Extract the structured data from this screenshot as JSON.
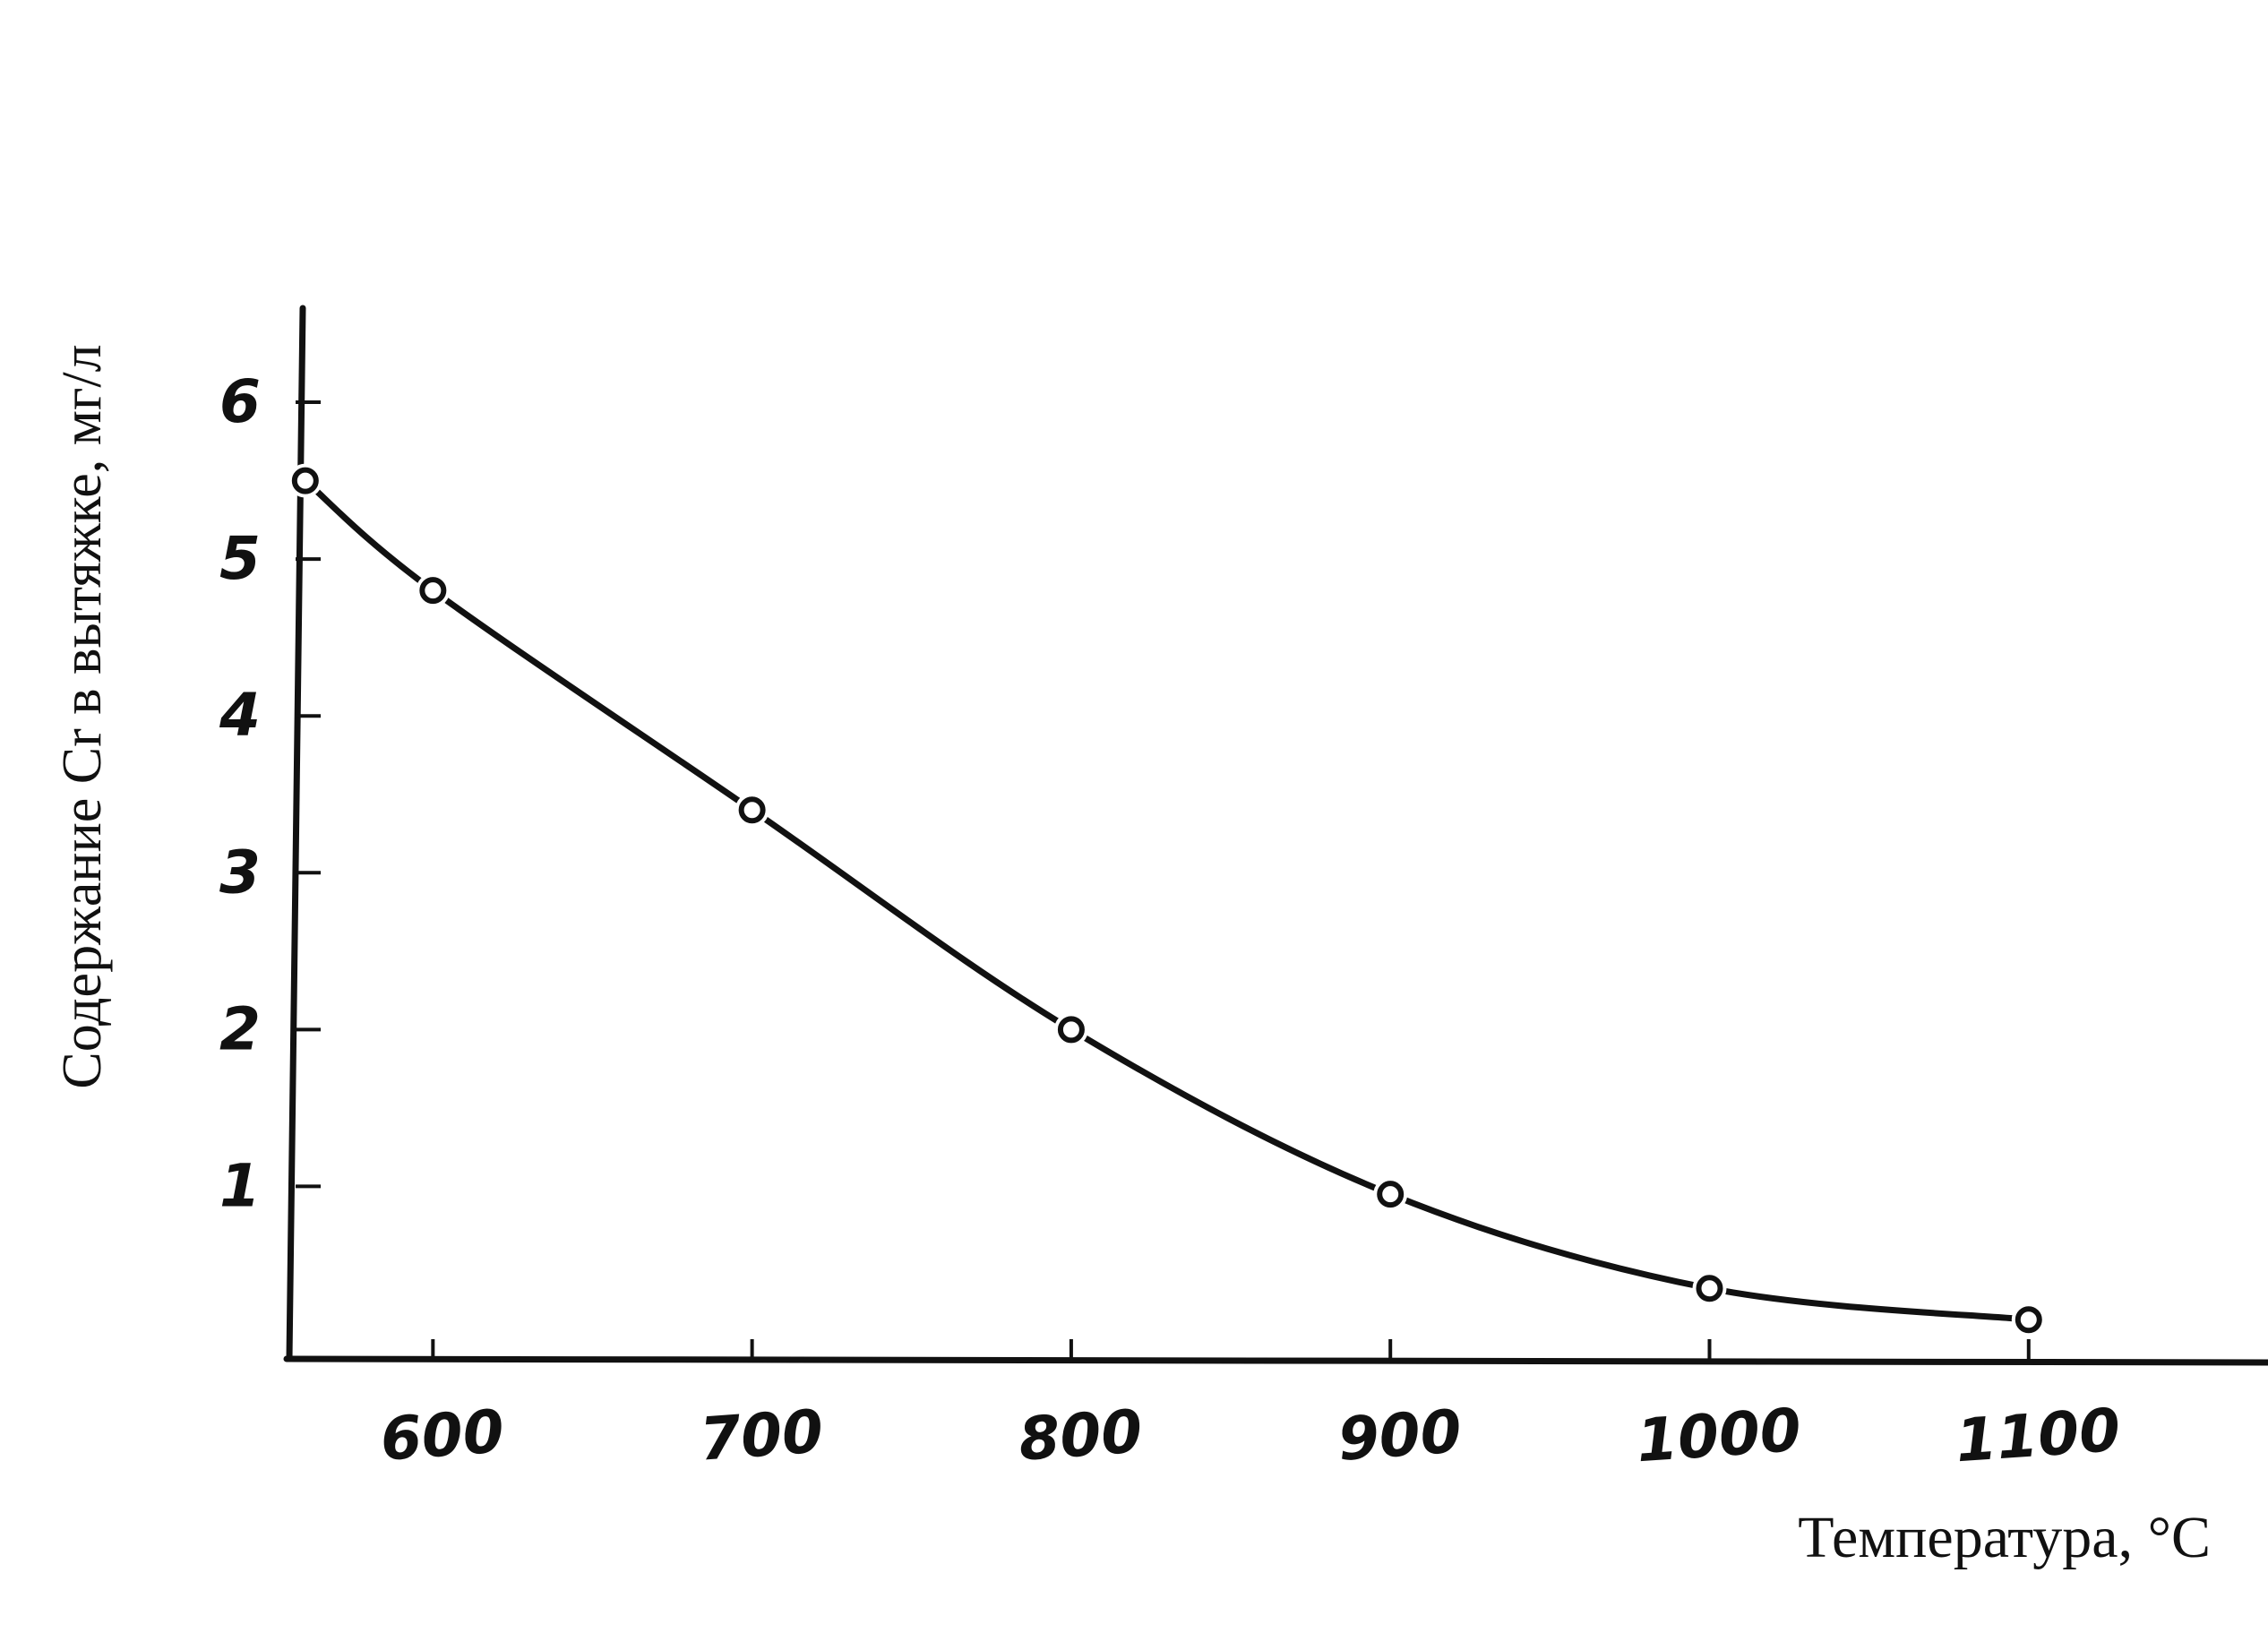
{
  "chart_data": {
    "type": "line",
    "title": "",
    "xlabel": "Температура, °C",
    "ylabel": "Содержание Cr в вытяжке, мг/л",
    "xlim": [
      555,
      1175
    ],
    "ylim": [
      -0.1,
      6.6
    ],
    "x_ticks": [
      600,
      700,
      800,
      900,
      1000,
      1100
    ],
    "x_tick_labels": [
      "600",
      "700",
      "800",
      "900",
      "1000",
      "1100"
    ],
    "y_ticks": [
      1,
      2,
      3,
      4,
      5,
      6
    ],
    "y_tick_labels": [
      "1",
      "2",
      "3",
      "4",
      "5",
      "6"
    ],
    "grid": false,
    "legend": "none",
    "series": [
      {
        "x": [
          560,
          600,
          700,
          800,
          900,
          1000,
          1100
        ],
        "y": [
          5.5,
          4.8,
          3.4,
          2.0,
          0.95,
          0.35,
          0.15
        ],
        "marker": "open-circle",
        "color": "#111111"
      }
    ]
  }
}
